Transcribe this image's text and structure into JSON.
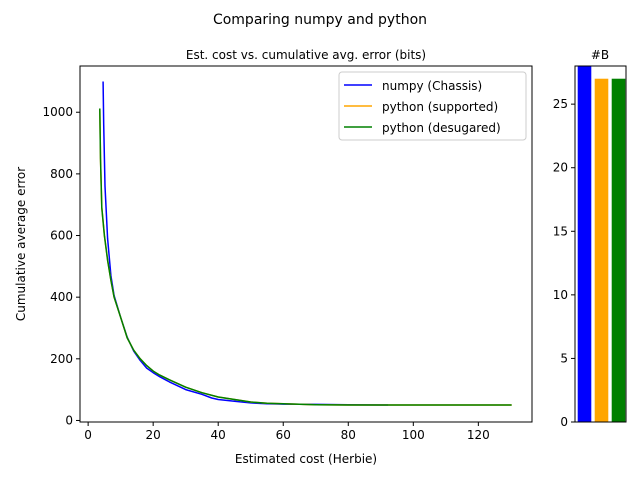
{
  "figure": {
    "suptitle": "Comparing numpy and python"
  },
  "chart_data": [
    {
      "type": "line",
      "title": "Est. cost vs. cumulative avg. error (bits)",
      "xlabel": "Estimated cost (Herbie)",
      "ylabel": "Cumulative average error",
      "xlim": [
        -2.5,
        136.5
      ],
      "ylim": [
        -5,
        1150
      ],
      "xticks": [
        0,
        20,
        40,
        60,
        80,
        100,
        120
      ],
      "yticks": [
        0,
        200,
        400,
        600,
        800,
        1000
      ],
      "grid": false,
      "legend_position": "top-right",
      "series": [
        {
          "name": "numpy (Chassis)",
          "color": "#0000ff",
          "x": [
            4.6,
            4.8,
            5.2,
            6.0,
            7.0,
            8.0,
            10.0,
            12.0,
            14.0,
            16.0,
            18.0,
            20.0,
            22.0,
            25.0,
            30.0,
            35.0,
            38.0,
            40.0,
            45.0,
            50.0,
            55.0,
            60.0,
            70.0,
            80.0,
            92.0
          ],
          "y": [
            1097,
            960,
            760,
            590,
            470,
            405,
            335,
            270,
            225,
            195,
            170,
            155,
            142,
            125,
            100,
            85,
            73,
            68,
            62,
            57,
            54,
            53,
            52,
            51,
            50
          ]
        },
        {
          "name": "python (supported)",
          "color": "#ffa500",
          "x": [
            3.6,
            3.8,
            4.2,
            5.0,
            6.0,
            7.0,
            8.0,
            10.0,
            12.0,
            14.0,
            16.0,
            18.0,
            20.0,
            22.0,
            25.0,
            30.0,
            35.0,
            40.0,
            45.0,
            50.0,
            55.0,
            60.0,
            70.0,
            80.0,
            90.0,
            100.0,
            110.0,
            120.0,
            130.0
          ],
          "y": [
            1010,
            850,
            690,
            600,
            520,
            455,
            400,
            335,
            268,
            228,
            200,
            178,
            160,
            147,
            132,
            108,
            90,
            76,
            68,
            60,
            56,
            54,
            51,
            50,
            50,
            50,
            50,
            50,
            50
          ]
        },
        {
          "name": "python (desugared)",
          "color": "#008000",
          "x": [
            3.6,
            3.8,
            4.2,
            5.0,
            6.0,
            7.0,
            8.0,
            10.0,
            12.0,
            14.0,
            16.0,
            18.0,
            20.0,
            22.0,
            25.0,
            30.0,
            35.0,
            40.0,
            45.0,
            50.0,
            55.0,
            60.0,
            70.0,
            80.0,
            90.0,
            100.0,
            110.0,
            120.0,
            130.0
          ],
          "y": [
            1010,
            850,
            690,
            600,
            520,
            455,
            400,
            335,
            268,
            228,
            200,
            178,
            160,
            147,
            132,
            108,
            90,
            76,
            68,
            60,
            56,
            54,
            51,
            50,
            50,
            50,
            50,
            50,
            50
          ]
        }
      ]
    },
    {
      "type": "bar",
      "title": "#B",
      "ylim": [
        0,
        28
      ],
      "yticks": [
        0,
        5,
        10,
        15,
        20,
        25
      ],
      "categories": [
        "numpy (Chassis)",
        "python (supported)",
        "python (desugared)"
      ],
      "colors": [
        "#0000ff",
        "#ffa500",
        "#008000"
      ],
      "values": [
        28,
        27,
        27
      ]
    }
  ]
}
